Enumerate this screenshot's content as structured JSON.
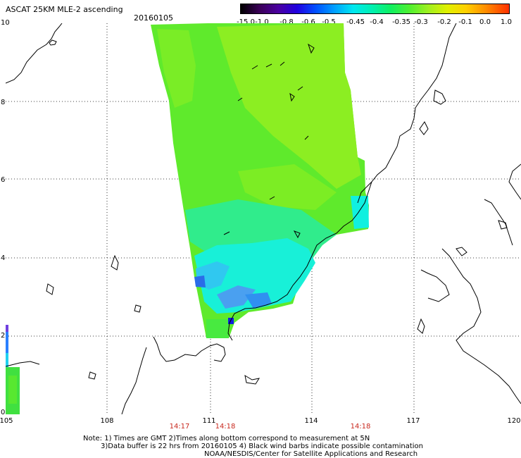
{
  "header": {
    "title": "ASCAT 25KM MLE-2 ascending",
    "date": "20160105"
  },
  "colorbar": {
    "labels": [
      "-15.0",
      "-1.0",
      "-0.8",
      "-0.6",
      "-0.5",
      "-0.45",
      "-0.4",
      "-0.35",
      "-0.3",
      "-0.2",
      "-0.1",
      "0.0",
      "1.0"
    ]
  },
  "axes": {
    "x_ticks": [
      "105",
      "108",
      "111",
      "114",
      "117",
      "120"
    ],
    "y_ticks": [
      "0",
      "2",
      "4",
      "6",
      "8",
      "10"
    ]
  },
  "pass_times": [
    "14:17",
    "14:18",
    "14:18"
  ],
  "notes": {
    "line1": "Note: 1) Times are GMT 2)Times along bottom correspond to measurement at 5N",
    "line2": "3)Data buffer is 22 hrs from 20160105 4) Black wind barbs indicate possible contamination",
    "line3": "NOAA/NESDIS/Center for Satellite Applications and Research"
  },
  "colors": {
    "swath_green": "#58e830",
    "swath_lime": "#90ee20",
    "swath_cyan": "#10f0e0",
    "swath_blue": "#2a80ff",
    "time_red": "#c8281e"
  }
}
